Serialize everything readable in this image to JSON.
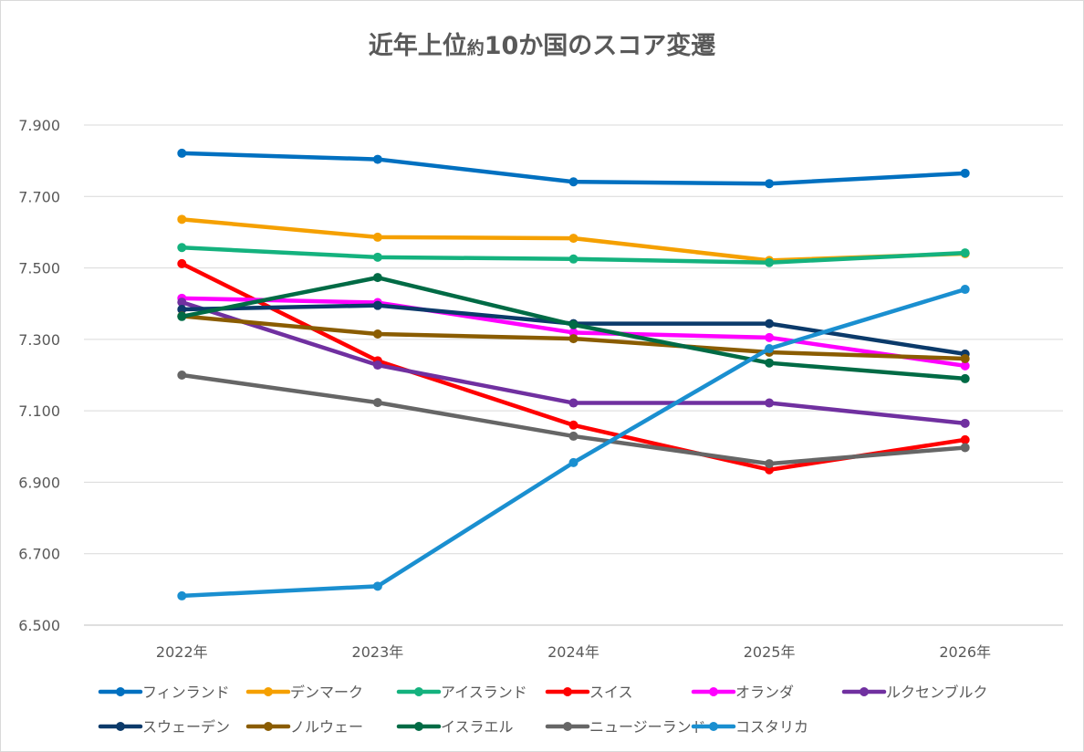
{
  "chart_data": {
    "type": "line",
    "title": "近年上位約10か国のスコア変遷",
    "title_parts": [
      "近年上位",
      "約",
      "10か国のスコア変遷"
    ],
    "categories": [
      "2022年",
      "2023年",
      "2024年",
      "2025年",
      "2026年"
    ],
    "ylim": [
      6.5,
      7.9
    ],
    "yticks": [
      "6.500",
      "6.700",
      "6.900",
      "7.100",
      "7.300",
      "7.500",
      "7.700",
      "7.900"
    ],
    "ytick_values": [
      6.5,
      6.7,
      6.9,
      7.1,
      7.3,
      7.5,
      7.7,
      7.9
    ],
    "grid": true,
    "legend_position": "bottom",
    "series": [
      {
        "name": "フィンランド",
        "color": "#0070C0",
        "values": [
          7.821,
          7.804,
          7.741,
          7.736,
          7.765
        ]
      },
      {
        "name": "デンマーク",
        "color": "#F5A000",
        "values": [
          7.636,
          7.586,
          7.583,
          7.521,
          7.54
        ]
      },
      {
        "name": "アイスランド",
        "color": "#14B27E",
        "values": [
          7.557,
          7.53,
          7.525,
          7.515,
          7.542
        ]
      },
      {
        "name": "スイス",
        "color": "#FF0000",
        "values": [
          7.512,
          7.24,
          7.06,
          6.935,
          7.019
        ]
      },
      {
        "name": "オランダ",
        "color": "#FF00FF",
        "values": [
          7.415,
          7.403,
          7.319,
          7.305,
          7.226
        ]
      },
      {
        "name": "ルクセンブルク",
        "color": "#7030A0",
        "values": [
          7.404,
          7.228,
          7.122,
          7.122,
          7.065
        ]
      },
      {
        "name": "スウェーデン",
        "color": "#0B3A6A",
        "values": [
          7.384,
          7.395,
          7.344,
          7.344,
          7.259
        ]
      },
      {
        "name": "ノルウェー",
        "color": "#8A5C00",
        "values": [
          7.365,
          7.315,
          7.302,
          7.264,
          7.246
        ]
      },
      {
        "name": "イスラエル",
        "color": "#006B45",
        "values": [
          7.364,
          7.473,
          7.341,
          7.234,
          7.19
        ]
      },
      {
        "name": "ニュージーランド",
        "color": "#666666",
        "values": [
          7.2,
          7.123,
          7.029,
          6.952,
          6.997
        ]
      },
      {
        "name": "コスタリカ",
        "color": "#1A8FD0",
        "values": [
          6.582,
          6.609,
          6.955,
          7.274,
          7.44
        ]
      }
    ]
  }
}
